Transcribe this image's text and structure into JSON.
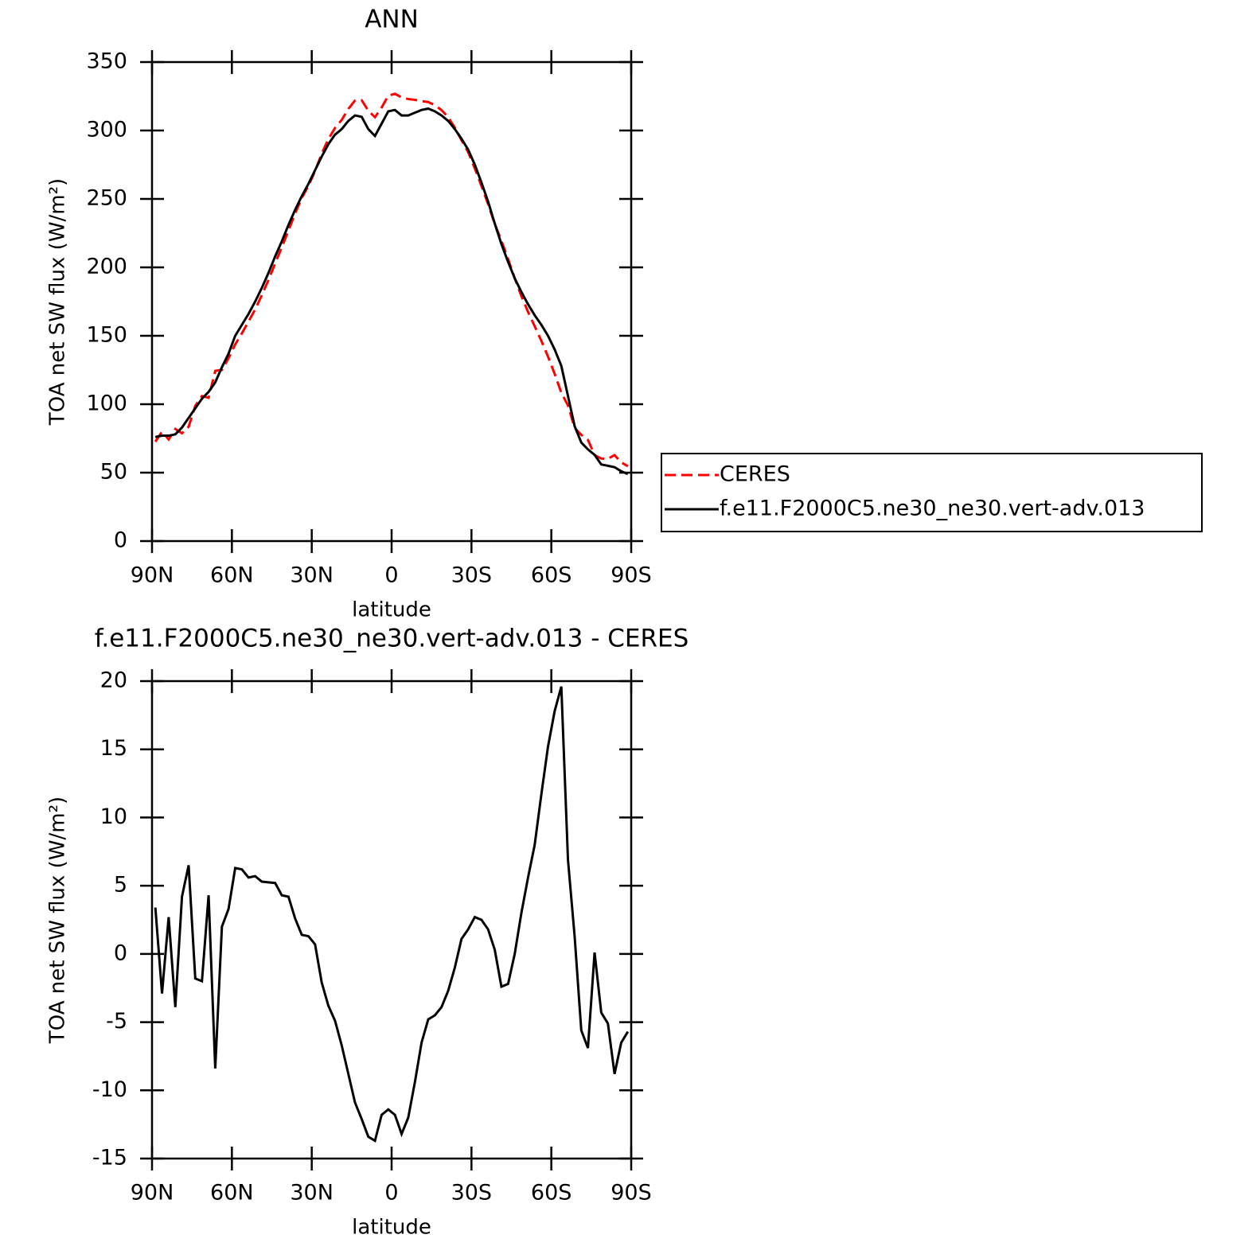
{
  "chart_data": [
    {
      "type": "line",
      "title": "ANN",
      "xlabel": "latitude",
      "ylabel": "TOA net SW flux (W/m²)",
      "x": [
        88.75,
        86.25,
        83.75,
        81.25,
        78.75,
        76.25,
        73.75,
        71.25,
        68.75,
        66.25,
        63.75,
        61.25,
        58.75,
        56.25,
        53.75,
        51.25,
        48.75,
        46.25,
        43.75,
        41.25,
        38.75,
        36.25,
        33.75,
        31.25,
        28.75,
        26.25,
        23.75,
        21.25,
        18.75,
        16.25,
        13.75,
        11.25,
        8.75,
        6.25,
        3.75,
        1.25,
        -1.25,
        -3.75,
        -6.25,
        -8.75,
        -11.25,
        -13.75,
        -16.25,
        -18.75,
        -21.25,
        -23.75,
        -26.25,
        -28.75,
        -31.25,
        -33.75,
        -36.25,
        -38.75,
        -41.25,
        -43.75,
        -46.25,
        -48.75,
        -51.25,
        -53.75,
        -56.25,
        -58.75,
        -61.25,
        -63.75,
        -66.25,
        -68.75,
        -71.25,
        -73.75,
        -76.25,
        -78.75,
        -81.25,
        -83.75,
        -86.25,
        -88.75
      ],
      "series": [
        {
          "name": "CERES",
          "color": "#ff0000",
          "style": "dashed",
          "values": [
            72.6,
            79.9,
            74.3,
            81.9,
            78.8,
            83.5,
            98.8,
            106,
            104.7,
            124.4,
            125,
            133.7,
            143.7,
            151.8,
            160.4,
            169.3,
            179.7,
            190.8,
            202.8,
            214.7,
            226.8,
            239.4,
            250.6,
            259.7,
            270.3,
            283.1,
            293.8,
            301.9,
            307.7,
            315.8,
            321.9,
            322.1,
            314.4,
            309.7,
            316.8,
            325.4,
            326.8,
            324.2,
            323,
            322.4,
            321.5,
            320.8,
            318.5,
            314.9,
            309.7,
            302,
            292.9,
            284.2,
            272.3,
            259.5,
            246.2,
            231.7,
            219.4,
            206.2,
            192,
            179,
            167.4,
            157,
            146.3,
            134.8,
            122.2,
            108.4,
            99.1,
            82.7,
            77.6,
            73.9,
            62.9,
            60.3,
            60.1,
            62.8,
            57.5,
            54.7
          ]
        },
        {
          "name": "f.e11.F2000C5.ne30_ne30.vert-adv.013",
          "color": "#000000",
          "style": "solid",
          "values": [
            76,
            77,
            77,
            78,
            83,
            90,
            97,
            104,
            109,
            116,
            127,
            137,
            150,
            158,
            166,
            175,
            185,
            196,
            208,
            219,
            231,
            242,
            252,
            261,
            271,
            281,
            290,
            297,
            301,
            307,
            311,
            310,
            301,
            296,
            305,
            314,
            315,
            311,
            311,
            313,
            315,
            316,
            314,
            311,
            307,
            301,
            294,
            286,
            275,
            262,
            248,
            232,
            217,
            204,
            192,
            182,
            173,
            165,
            158,
            150,
            140,
            128,
            106,
            84,
            72,
            67,
            63,
            56,
            55,
            54,
            51,
            49
          ]
        }
      ],
      "xlim": [
        90,
        -90
      ],
      "ylim": [
        0,
        350
      ],
      "xticks": [
        {
          "value": 90,
          "label": "90N"
        },
        {
          "value": 60,
          "label": "60N"
        },
        {
          "value": 30,
          "label": "30N"
        },
        0,
        {
          "value": -30,
          "label": "30S"
        },
        {
          "value": -60,
          "label": "60S"
        },
        {
          "value": -90,
          "label": "90S"
        }
      ],
      "yticks": [
        0,
        50,
        100,
        150,
        200,
        250,
        300,
        350
      ],
      "legend": "right"
    },
    {
      "type": "line",
      "title": "f.e11.F2000C5.ne30_ne30.vert-adv.013 - CERES",
      "xlabel": "latitude",
      "ylabel": "TOA net SW flux (W/m²)",
      "x": [
        88.75,
        86.25,
        83.75,
        81.25,
        78.75,
        76.25,
        73.75,
        71.25,
        68.75,
        66.25,
        63.75,
        61.25,
        58.75,
        56.25,
        53.75,
        51.25,
        48.75,
        46.25,
        43.75,
        41.25,
        38.75,
        36.25,
        33.75,
        31.25,
        28.75,
        26.25,
        23.75,
        21.25,
        18.75,
        16.25,
        13.75,
        11.25,
        8.75,
        6.25,
        3.75,
        1.25,
        -1.25,
        -3.75,
        -6.25,
        -8.75,
        -11.25,
        -13.75,
        -16.25,
        -18.75,
        -21.25,
        -23.75,
        -26.25,
        -28.75,
        -31.25,
        -33.75,
        -36.25,
        -38.75,
        -41.25,
        -43.75,
        -46.25,
        -48.75,
        -51.25,
        -53.75,
        -56.25,
        -58.75,
        -61.25,
        -63.75,
        -66.25,
        -68.75,
        -71.25,
        -73.75,
        -76.25,
        -78.75,
        -81.25,
        -83.75,
        -86.25,
        -88.75
      ],
      "series": [
        {
          "color": "#000000",
          "style": "solid",
          "values": [
            3.4,
            -2.9,
            2.7,
            -3.9,
            4.2,
            6.5,
            -1.8,
            -2.0,
            4.3,
            -8.4,
            2.0,
            3.3,
            6.3,
            6.2,
            5.6,
            5.7,
            5.3,
            5.25,
            5.2,
            4.3,
            4.2,
            2.6,
            1.4,
            1.3,
            0.7,
            -2.1,
            -3.8,
            -4.9,
            -6.7,
            -8.8,
            -10.9,
            -12.1,
            -13.4,
            -13.7,
            -11.8,
            -11.4,
            -11.8,
            -13.2,
            -12.0,
            -9.4,
            -6.5,
            -4.8,
            -4.5,
            -3.9,
            -2.7,
            -1.0,
            1.1,
            1.8,
            2.7,
            2.5,
            1.8,
            0.3,
            -2.4,
            -2.2,
            0.0,
            3.0,
            5.6,
            8.0,
            11.7,
            15.2,
            17.8,
            19.6,
            6.9,
            1.3,
            -5.6,
            -6.9,
            0.1,
            -4.3,
            -5.1,
            -8.8,
            -6.5,
            -5.7
          ]
        }
      ],
      "xlim": [
        90,
        -90
      ],
      "ylim": [
        -15,
        20
      ],
      "xticks": [
        {
          "value": 90,
          "label": "90N"
        },
        {
          "value": 60,
          "label": "60N"
        },
        {
          "value": 30,
          "label": "30N"
        },
        0,
        {
          "value": -30,
          "label": "30S"
        },
        {
          "value": -60,
          "label": "60S"
        },
        {
          "value": -90,
          "label": "90S"
        }
      ],
      "yticks": [
        -15,
        -10,
        -5,
        0,
        5,
        10,
        15,
        20
      ]
    }
  ]
}
